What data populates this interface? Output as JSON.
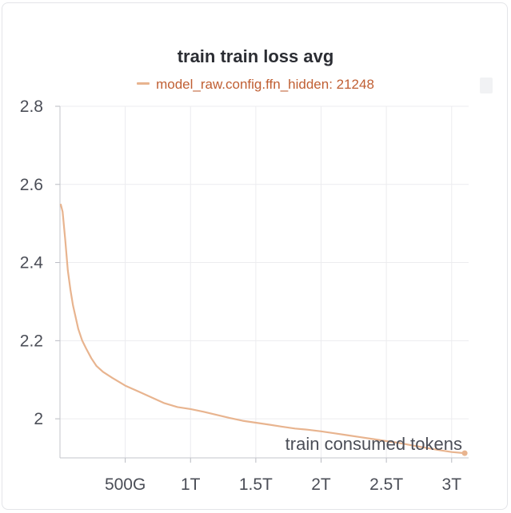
{
  "chart_data": {
    "type": "line",
    "title": "train train loss avg",
    "xlabel": "train consumed tokens",
    "ylabel": "",
    "xlim": [
      0,
      3.13
    ],
    "ylim": [
      1.9,
      2.8
    ],
    "x_unit": "T tokens",
    "x_ticks": [
      {
        "value": 0.5,
        "label": "500G"
      },
      {
        "value": 1.0,
        "label": "1T"
      },
      {
        "value": 1.5,
        "label": "1.5T"
      },
      {
        "value": 2.0,
        "label": "2T"
      },
      {
        "value": 2.5,
        "label": "2.5T"
      },
      {
        "value": 3.0,
        "label": "3T"
      }
    ],
    "y_ticks": [
      {
        "value": 2.0,
        "label": "2"
      },
      {
        "value": 2.2,
        "label": "2.2"
      },
      {
        "value": 2.4,
        "label": "2.4"
      },
      {
        "value": 2.6,
        "label": "2.6"
      },
      {
        "value": 2.8,
        "label": "2.8"
      }
    ],
    "grid": true,
    "legend_position": "top-center",
    "series": [
      {
        "name": "model_raw.config.ffn_hidden: 21248",
        "color": "#e8b48f",
        "x": [
          0.005,
          0.02,
          0.04,
          0.06,
          0.08,
          0.1,
          0.12,
          0.14,
          0.17,
          0.2,
          0.24,
          0.28,
          0.33,
          0.4,
          0.5,
          0.6,
          0.7,
          0.8,
          0.9,
          1.0,
          1.1,
          1.2,
          1.3,
          1.4,
          1.5,
          1.6,
          1.7,
          1.8,
          1.9,
          2.0,
          2.1,
          2.2,
          2.3,
          2.4,
          2.5,
          2.6,
          2.7,
          2.8,
          2.9,
          3.0,
          3.1
        ],
        "y": [
          2.55,
          2.53,
          2.46,
          2.38,
          2.33,
          2.29,
          2.26,
          2.23,
          2.2,
          2.18,
          2.155,
          2.135,
          2.12,
          2.105,
          2.085,
          2.07,
          2.055,
          2.04,
          2.03,
          2.025,
          2.018,
          2.01,
          2.002,
          1.995,
          1.99,
          1.985,
          1.98,
          1.975,
          1.972,
          1.968,
          1.963,
          1.958,
          1.953,
          1.948,
          1.943,
          1.938,
          1.932,
          1.926,
          1.92,
          1.915,
          1.912
        ]
      }
    ]
  }
}
